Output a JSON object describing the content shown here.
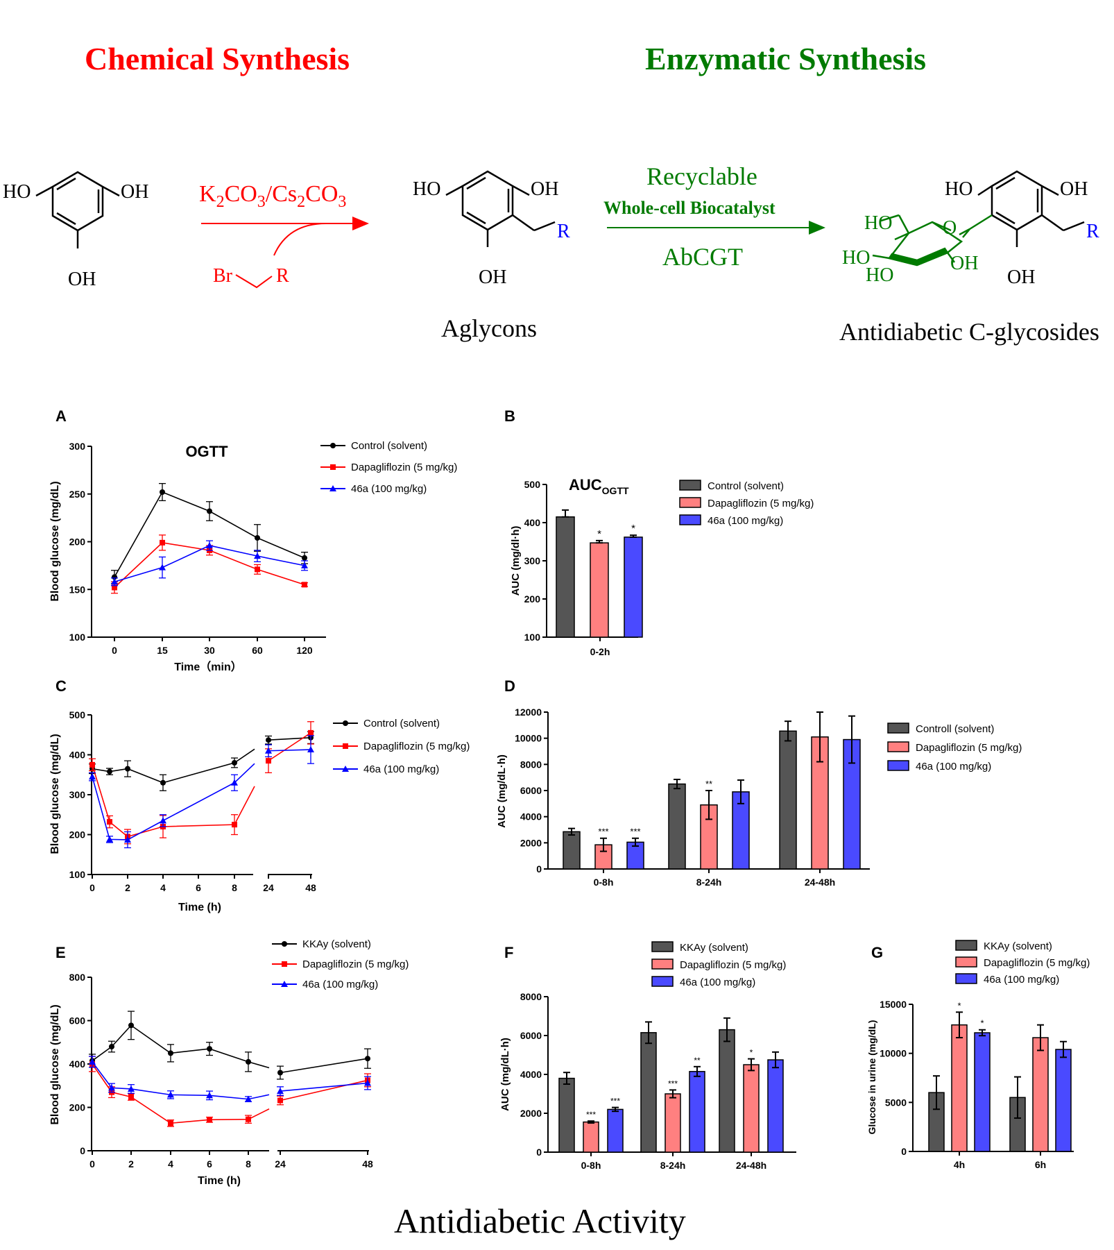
{
  "scheme": {
    "left_title": "Chemical Synthesis",
    "right_title": "Enzymatic Synthesis",
    "footer": "Antidiabetic Activity",
    "reagent1": "K2CO3/Cs2CO3",
    "reagent_br": "Br",
    "reagent_r": "R",
    "enzyme_line1": "Recyclable",
    "enzyme_line2": "Whole-cell Biocatalyst",
    "enzyme_line3": "AbCGT",
    "aglycons": "Aglycons",
    "product": "Antidiabetic C-glycosides",
    "oh": "OH",
    "ho": "HO",
    "o": "O",
    "r": "R",
    "colors": {
      "chem": "#ff0000",
      "enz": "#007a00",
      "r": "#0000ff"
    }
  },
  "chart_data": [
    {
      "panel": "A",
      "type": "line",
      "title": "OGTT",
      "xlabel": "Time（min）",
      "ylabel": "Blood glucose (mg/dL)",
      "categories": [
        "0",
        "15",
        "30",
        "60",
        "120"
      ],
      "ylim": [
        100,
        300
      ],
      "yticks": [
        100,
        150,
        200,
        250,
        300
      ],
      "series": [
        {
          "name": "Control (solvent)",
          "color": "#000000",
          "marker": "circle",
          "values": [
            163,
            252,
            232,
            204,
            183
          ],
          "err": [
            7,
            9,
            10,
            14,
            6
          ]
        },
        {
          "name": "Dapagliflozin (5 mg/kg)",
          "color": "#ff0000",
          "marker": "square",
          "values": [
            152,
            199,
            191,
            171,
            155
          ],
          "err": [
            6,
            8,
            5,
            5,
            2
          ]
        },
        {
          "name": "46a (100 mg/kg)",
          "color": "#0000ff",
          "marker": "triangle",
          "values": [
            158,
            173,
            196,
            185,
            175
          ],
          "err": [
            4,
            11,
            5,
            6,
            5
          ]
        }
      ]
    },
    {
      "panel": "B",
      "type": "bar",
      "title": "AUC",
      "title_sub": "OGTT",
      "xlabel": "",
      "ylabel": "AUC (mg/dl·h)",
      "categories": [
        "0-2h"
      ],
      "ylim": [
        100,
        500
      ],
      "yticks": [
        100,
        200,
        300,
        400,
        500
      ],
      "series": [
        {
          "name": "Control (solvent)",
          "color": "#555555",
          "values": [
            415
          ],
          "err": [
            18
          ],
          "sig": [
            ""
          ]
        },
        {
          "name": "Dapagliflozin (5 mg/kg)",
          "color": "#ff8080",
          "values": [
            347
          ],
          "err": [
            6
          ],
          "sig": [
            "*"
          ]
        },
        {
          "name": "46a (100 mg/kg)",
          "color": "#4a4aff",
          "values": [
            362
          ],
          "err": [
            5
          ],
          "sig": [
            "*"
          ]
        }
      ]
    },
    {
      "panel": "C",
      "type": "line",
      "xlabel": "Time (h)",
      "ylabel": "Blood glucose (mg/dL)",
      "x": [
        0,
        1,
        2,
        4,
        8,
        24,
        48
      ],
      "ylim": [
        100,
        500
      ],
      "yticks": [
        100,
        200,
        300,
        400,
        500
      ],
      "series": [
        {
          "name": "Control (solvent)",
          "color": "#000000",
          "marker": "circle",
          "values": [
            365,
            358,
            365,
            330,
            380,
            437,
            443
          ],
          "err": [
            12,
            8,
            20,
            20,
            12,
            10,
            15
          ]
        },
        {
          "name": "Dapagliflozin (5 mg/kg)",
          "color": "#ff0000",
          "marker": "square",
          "values": [
            375,
            232,
            195,
            220,
            225,
            385,
            455
          ],
          "err": [
            15,
            15,
            18,
            28,
            25,
            30,
            28
          ]
        },
        {
          "name": "46a (100 mg/kg)",
          "color": "#0000ff",
          "marker": "triangle",
          "values": [
            345,
            188,
            187,
            235,
            330,
            410,
            413
          ],
          "err": [
            10,
            8,
            20,
            15,
            20,
            15,
            35
          ]
        }
      ]
    },
    {
      "panel": "D",
      "type": "bar",
      "xlabel": "",
      "ylabel": "AUC (mg/dL·h)",
      "categories": [
        "0-8h",
        "8-24h",
        "24-48h"
      ],
      "ylim": [
        0,
        12000
      ],
      "yticks": [
        0,
        2000,
        4000,
        6000,
        8000,
        10000,
        12000
      ],
      "series": [
        {
          "name": "Controll (solvent)",
          "color": "#555555",
          "values": [
            2850,
            6500,
            10550
          ],
          "err": [
            250,
            350,
            750
          ],
          "sig": [
            "",
            "",
            ""
          ]
        },
        {
          "name": "Dapagliflozin (5 mg/kg)",
          "color": "#ff8080",
          "values": [
            1850,
            4900,
            10100
          ],
          "err": [
            500,
            1100,
            1900
          ],
          "sig": [
            "***",
            "**",
            ""
          ]
        },
        {
          "name": "46a (100 mg/kg)",
          "color": "#4a4aff",
          "values": [
            2050,
            5900,
            9900
          ],
          "err": [
            300,
            900,
            1800
          ],
          "sig": [
            "***",
            "",
            ""
          ]
        }
      ]
    },
    {
      "panel": "E",
      "type": "line",
      "xlabel": "Time (h)",
      "ylabel": "Blood glucose (mg/dL)",
      "x": [
        0,
        1,
        2,
        4,
        6,
        8,
        24,
        48
      ],
      "ylim": [
        0,
        800
      ],
      "yticks": [
        0,
        200,
        400,
        600,
        800
      ],
      "series": [
        {
          "name": "KKAy (solvent)",
          "color": "#000000",
          "marker": "circle",
          "values": [
            415,
            480,
            578,
            450,
            470,
            410,
            360,
            425
          ],
          "err": [
            30,
            25,
            65,
            40,
            30,
            45,
            30,
            45
          ]
        },
        {
          "name": "Dapagliflozin (5 mg/kg)",
          "color": "#ff0000",
          "marker": "square",
          "values": [
            400,
            270,
            248,
            127,
            143,
            145,
            232,
            325
          ],
          "err": [
            35,
            25,
            15,
            15,
            12,
            18,
            20,
            30
          ]
        },
        {
          "name": "46a (100 mg/kg)",
          "color": "#0000ff",
          "marker": "triangle",
          "values": [
            410,
            290,
            285,
            258,
            255,
            238,
            275,
            312
          ],
          "err": [
            25,
            20,
            20,
            18,
            20,
            12,
            20,
            30
          ]
        }
      ]
    },
    {
      "panel": "F",
      "type": "bar",
      "xlabel": "",
      "ylabel": "AUC (mg/dL·h)",
      "categories": [
        "0-8h",
        "8-24h",
        "24-48h"
      ],
      "ylim": [
        0,
        8000
      ],
      "yticks": [
        0,
        2000,
        4000,
        6000,
        8000
      ],
      "series": [
        {
          "name": "KKAy (solvent)",
          "color": "#555555",
          "values": [
            3800,
            6150,
            6300
          ],
          "err": [
            300,
            550,
            600
          ],
          "sig": [
            "",
            "",
            ""
          ]
        },
        {
          "name": "Dapagliflozin (5 mg/kg)",
          "color": "#ff8080",
          "values": [
            1550,
            3000,
            4500
          ],
          "err": [
            50,
            200,
            300
          ],
          "sig": [
            "***",
            "***",
            "*"
          ]
        },
        {
          "name": "46a (100 mg/kg)",
          "color": "#4a4aff",
          "values": [
            2200,
            4150,
            4750
          ],
          "err": [
            100,
            250,
            400
          ],
          "sig": [
            "***",
            "**",
            ""
          ]
        }
      ]
    },
    {
      "panel": "G",
      "type": "bar",
      "xlabel": "",
      "ylabel": "Glucose in urine (mg/dL)",
      "categories": [
        "4h",
        "6h"
      ],
      "ylim": [
        0,
        15000
      ],
      "yticks": [
        0,
        5000,
        10000,
        15000
      ],
      "series": [
        {
          "name": "KKAy (solvent)",
          "color": "#555555",
          "values": [
            6000,
            5500
          ],
          "err": [
            1700,
            2100
          ],
          "sig": [
            "",
            ""
          ]
        },
        {
          "name": "Dapagliflozin (5 mg/kg)",
          "color": "#ff8080",
          "values": [
            12900,
            11600
          ],
          "err": [
            1300,
            1300
          ],
          "sig": [
            "*",
            ""
          ]
        },
        {
          "name": "46a (100 mg/kg)",
          "color": "#4a4aff",
          "values": [
            12100,
            10400
          ],
          "err": [
            300,
            800
          ],
          "sig": [
            "*",
            ""
          ]
        }
      ]
    }
  ]
}
